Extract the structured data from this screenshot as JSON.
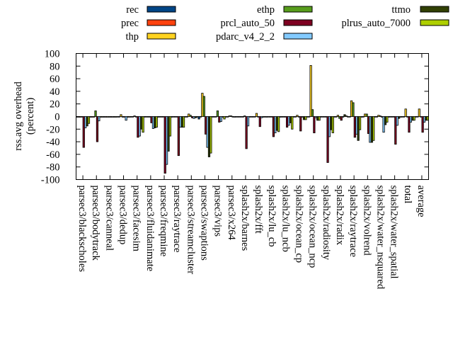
{
  "chart_data": {
    "type": "bar",
    "title": "",
    "xlabel": "",
    "ylabel": [
      "rss.avg overhead",
      "(percent)"
    ],
    "ylim": [
      -100,
      100
    ],
    "yticks": [
      -100,
      -80,
      -60,
      -40,
      -20,
      0,
      20,
      40,
      60,
      80,
      100
    ],
    "grid": false,
    "legend_placement": "top",
    "categories": [
      "parsec3/blackscholes",
      "parsec3/bodytrack",
      "parsec3/canneal",
      "parsec3/dedup",
      "parsec3/facesim",
      "parsec3/fluidanimate",
      "parsec3/freqmine",
      "parsec3/raytrace",
      "parsec3/streamcluster",
      "parsec3/swaptions",
      "parsec3/vips",
      "parsec3/x264",
      "splash2x/barnes",
      "splash2x/fft",
      "splash2x/lu_cb",
      "splash2x/lu_ncb",
      "splash2x/ocean_cp",
      "splash2x/ocean_ncp",
      "splash2x/radiosity",
      "splash2x/radix",
      "splash2x/raytrace",
      "splash2x/volrend",
      "splash2x/water_nsquared",
      "splash2x/water_spatial",
      "total",
      "average"
    ],
    "series": [
      {
        "name": "rec",
        "color": "#004586",
        "values": [
          -1,
          -1,
          -1,
          0,
          0,
          0,
          -1,
          -1,
          0,
          -4,
          0,
          0,
          0,
          0,
          -1,
          -1,
          0,
          0,
          0,
          0,
          0,
          -1,
          0,
          -1,
          0,
          0
        ]
      },
      {
        "name": "prec",
        "color": "#ff420e",
        "values": [
          -1,
          -1,
          -1,
          0,
          0,
          0,
          0,
          0,
          0,
          0,
          0,
          0,
          0,
          0,
          0,
          0,
          0,
          0,
          0,
          0,
          0,
          0,
          0,
          0,
          0,
          0
        ]
      },
      {
        "name": "thp",
        "color": "#ffd320",
        "values": [
          -1,
          -1,
          -1,
          3,
          1,
          0,
          0,
          0,
          4,
          37,
          0,
          1,
          0,
          5,
          0,
          0,
          2,
          81,
          0,
          2,
          25,
          4,
          2,
          0,
          12,
          12
        ]
      },
      {
        "name": "ethp",
        "color": "#579d1c",
        "values": [
          0,
          9,
          -1,
          -1,
          0,
          0,
          0,
          0,
          2,
          32,
          9,
          1,
          1,
          0,
          0,
          0,
          0,
          11,
          0,
          -3,
          22,
          4,
          1,
          0,
          0,
          0
        ]
      },
      {
        "name": "prcl_auto_50",
        "color": "#7e0021",
        "values": [
          -49,
          -40,
          -1,
          -1,
          -33,
          -10,
          -90,
          -62,
          -2,
          -28,
          -9,
          0,
          -51,
          -16,
          -32,
          -17,
          -23,
          -26,
          -73,
          -6,
          -33,
          -27,
          -1,
          -44,
          -25,
          -25
        ]
      },
      {
        "name": "pdarc_v4_2_2",
        "color": "#83caff",
        "values": [
          -18,
          -7,
          -1,
          -6,
          -31,
          -19,
          -76,
          -17,
          -3,
          -49,
          -8,
          -1,
          -15,
          -2,
          -26,
          -14,
          -1,
          -2,
          -32,
          -1,
          -28,
          -41,
          -25,
          -14,
          -9,
          -9
        ]
      },
      {
        "name": "ttmo",
        "color": "#314004",
        "values": [
          -15,
          -1,
          -1,
          -1,
          -20,
          -18,
          -55,
          -17,
          -2,
          -64,
          -1,
          0,
          0,
          -1,
          -22,
          -10,
          -5,
          -6,
          -21,
          3,
          -38,
          -41,
          -13,
          -3,
          -6,
          -6
        ]
      },
      {
        "name": "plrus_auto_7000",
        "color": "#aecf00",
        "values": [
          -11,
          -1,
          -1,
          -1,
          -25,
          -17,
          -31,
          -17,
          -1,
          -58,
          -4,
          0,
          0,
          0,
          -24,
          -20,
          -5,
          -6,
          -26,
          1,
          -21,
          -38,
          -9,
          -1,
          -6,
          -6
        ]
      }
    ]
  }
}
